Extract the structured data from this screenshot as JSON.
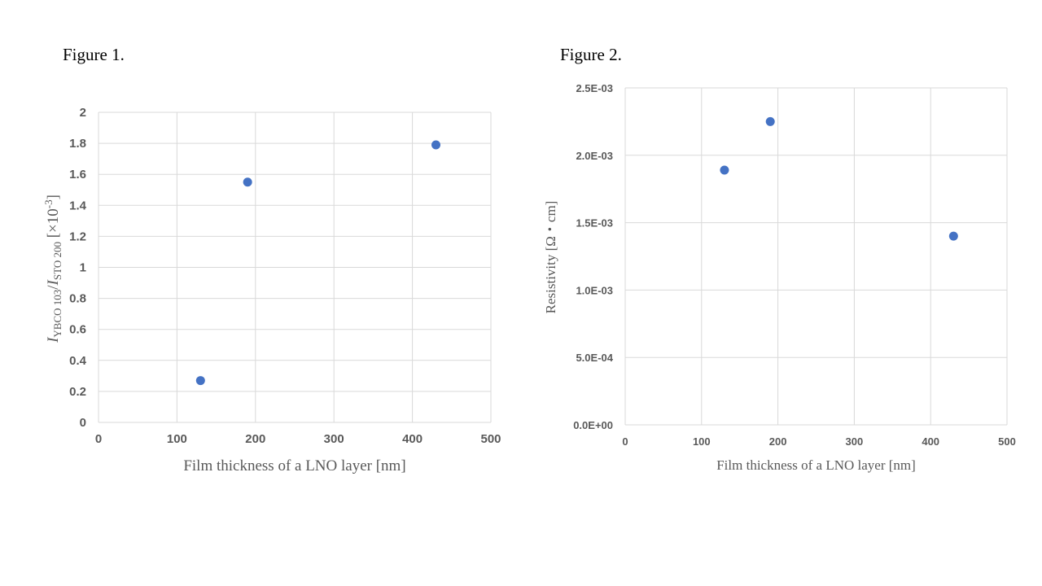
{
  "figure1_label": "Figure 1.",
  "figure2_label": "Figure 2.",
  "chart_data": [
    {
      "type": "scatter",
      "x": [
        130,
        190,
        430
      ],
      "y": [
        0.27,
        1.55,
        1.79
      ],
      "xlabel": "Film thickness of a LNO layer [nm]",
      "ylabel": {
        "I1": "I",
        "sub1": "YBCO 103",
        "slash": "/",
        "I2": "I",
        "sub2": "STO 200",
        "rest": " [×10",
        "sup": "-3",
        "close": "]"
      },
      "xlim": [
        0,
        500
      ],
      "ylim": [
        0,
        2
      ],
      "xticks": [
        "0",
        "100",
        "200",
        "300",
        "400",
        "500"
      ],
      "yticks": [
        "0",
        "0.2",
        "0.4",
        "0.6",
        "0.8",
        "1",
        "1.2",
        "1.4",
        "1.6",
        "1.8",
        "2"
      ],
      "grid": true,
      "color": "#4472c4"
    },
    {
      "type": "scatter",
      "x": [
        130,
        190,
        430
      ],
      "y": [
        0.00189,
        0.00225,
        0.0014
      ],
      "xlabel": "Film thickness of a LNO layer [nm]",
      "ylabel": "Resistivity [Ω・cm]",
      "xlim": [
        0,
        500
      ],
      "ylim": [
        0,
        0.0025
      ],
      "xticks": [
        "0",
        "100",
        "200",
        "300",
        "400",
        "500"
      ],
      "yticks": [
        "0.0E+00",
        "5.0E-04",
        "1.0E-03",
        "1.5E-03",
        "2.0E-03",
        "2.5E-03"
      ],
      "grid": true,
      "color": "#4472c4"
    }
  ]
}
